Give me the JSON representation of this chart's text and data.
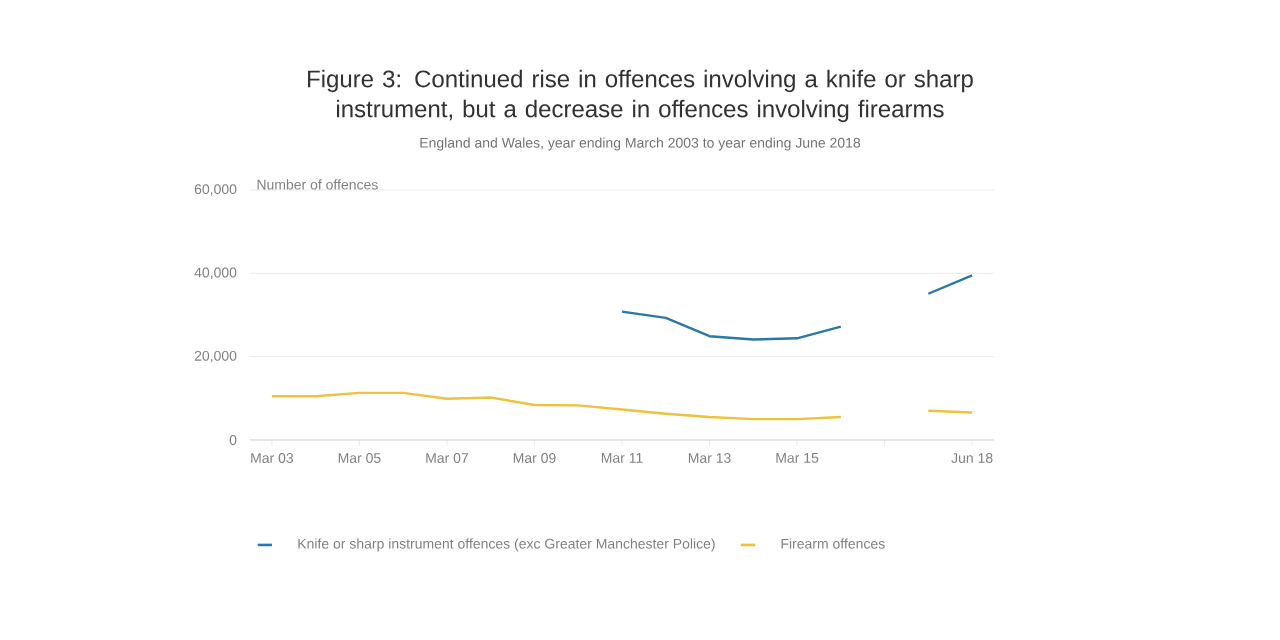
{
  "chart_data": {
    "type": "line",
    "title": "Figure 3: Continued rise in offences involving a knife or sharp instrument, but a decrease in offences involving firearms",
    "subtitle": "England and Wales, year ending March 2003 to year ending June 2018",
    "ylabel": "Number of offences",
    "categories": [
      "Mar 03",
      null,
      "Mar 05",
      null,
      "Mar 07",
      null,
      "Mar 09",
      null,
      "Mar 11",
      null,
      "Mar 13",
      null,
      "Mar 15",
      null,
      null,
      null,
      "Jun 18"
    ],
    "series": [
      {
        "name": "Knife or sharp instrument offences (exc Greater Manchester Police)",
        "color": "#2a78a8",
        "values": [
          null,
          null,
          null,
          null,
          null,
          null,
          null,
          null,
          30800,
          29300,
          24900,
          24100,
          24400,
          27200,
          null,
          35100,
          39500
        ]
      },
      {
        "name": "Firearm offences",
        "color": "#eec23c",
        "values": [
          10500,
          10500,
          11300,
          11300,
          9900,
          10200,
          8400,
          8300,
          7300,
          6300,
          5500,
          5000,
          5000,
          5500,
          null,
          7000,
          6600
        ]
      }
    ],
    "ylim": [
      0,
      60000
    ],
    "yticks": [
      0,
      {
        "value": 20000,
        "label": "20,000"
      },
      {
        "value": 40000,
        "label": "40,000"
      },
      {
        "value": 60000,
        "label": "60,000"
      }
    ],
    "grid": "y",
    "legend": "bottom",
    "marker": "none",
    "line_style": "solid"
  }
}
